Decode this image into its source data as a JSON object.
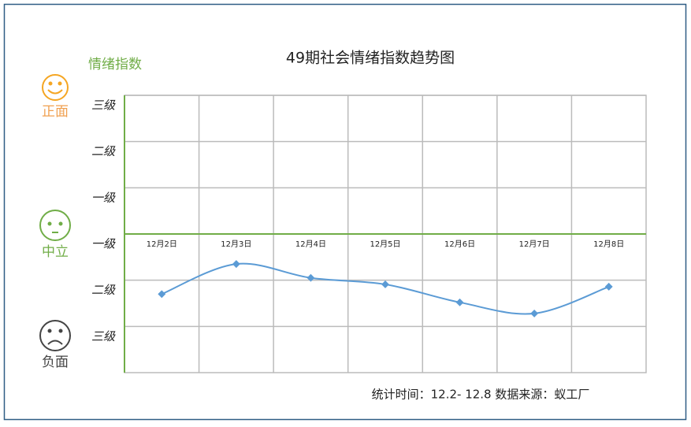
{
  "chart_data": {
    "type": "line",
    "title": "49期社会情绪指数趋势图",
    "y_label": "情绪指数",
    "mood_labels": [
      "正面",
      "中立",
      "负面"
    ],
    "categories": [
      "12月2日",
      "12月3日",
      "12月4日",
      "12月5日",
      "12月6日",
      "12月7日",
      "12月8日"
    ],
    "series": [
      {
        "color": "#5b9bd5",
        "values": [
          -1.3,
          -0.65,
          -0.95,
          -1.09,
          -1.48,
          -1.72,
          -1.14
        ]
      }
    ],
    "ylim": [
      -3,
      3
    ],
    "yticks": [
      {
        "value": 3,
        "label": "三级"
      },
      {
        "value": 2,
        "label": "二级"
      },
      {
        "value": 1,
        "label": "一级"
      },
      {
        "value": 0,
        "label": "一级"
      },
      {
        "value": -1,
        "label": "二级"
      },
      {
        "value": -2,
        "label": "三级"
      }
    ],
    "grid": true,
    "footer": "统计时间：12.2- 12.8  数据来源：蚁工厂"
  }
}
